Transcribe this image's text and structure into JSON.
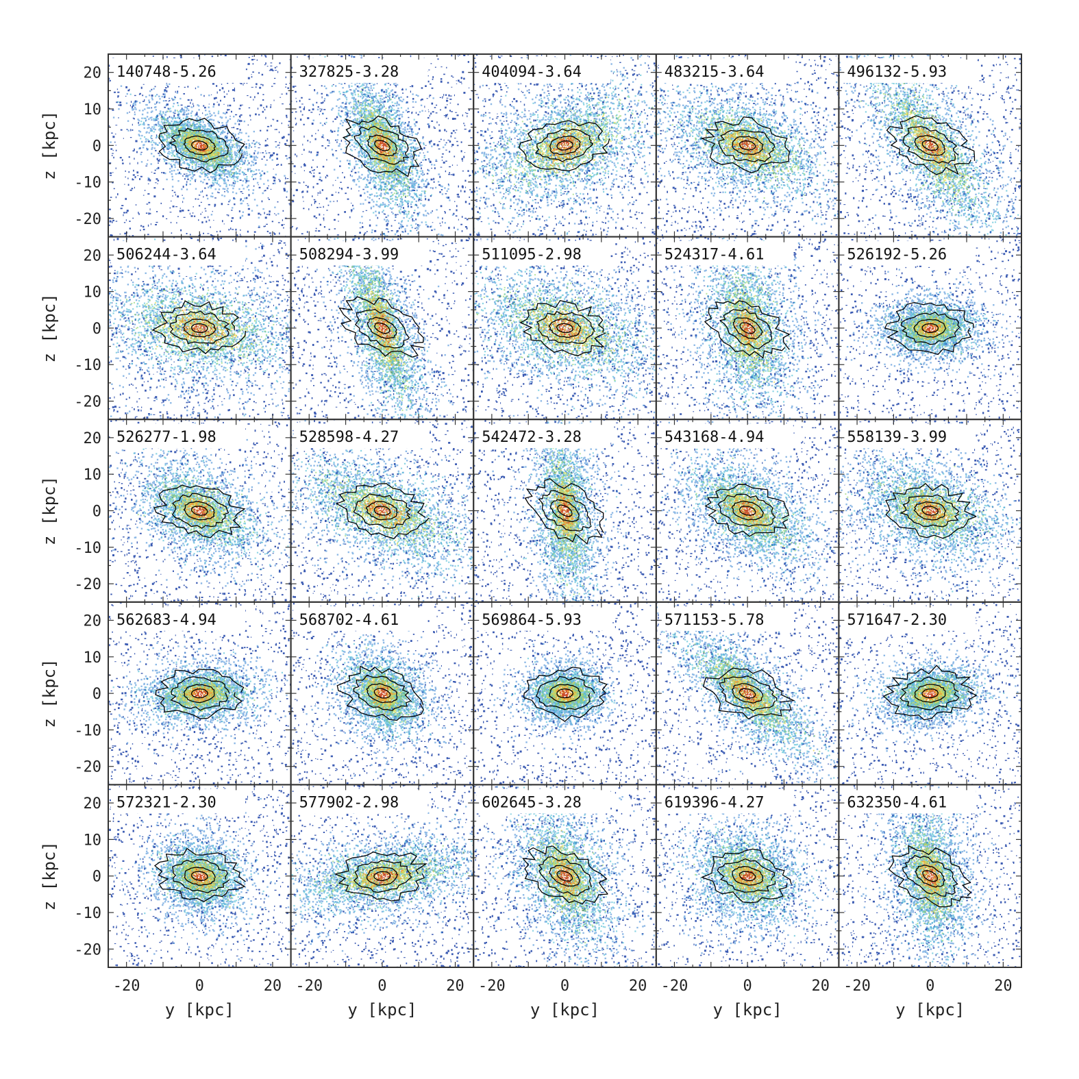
{
  "chart_data": {
    "type": "heatmap",
    "layout": {
      "rows": 5,
      "cols": 5
    },
    "xlabel": "y [kpc]",
    "ylabel": "z [kpc]",
    "xlim": [
      -25,
      25
    ],
    "ylim": [
      -25,
      25
    ],
    "xticks": [
      -20,
      0,
      20
    ],
    "yticks": [
      -20,
      -10,
      0,
      10,
      20
    ],
    "colormap": [
      "#1a3fa6",
      "#2f7fd1",
      "#3fb8d0",
      "#8fd26a",
      "#e8d64a",
      "#ef9a35",
      "#c8402c",
      "#ffffff"
    ],
    "contour_color": "#000000",
    "panels": [
      {
        "label": "140748-5.26",
        "angle_deg": -30,
        "extent_kpc": 12,
        "width_kpc": 3.0
      },
      {
        "label": "327825-3.28",
        "angle_deg": -68,
        "extent_kpc": 16,
        "width_kpc": 3.5
      },
      {
        "label": "404094-3.64",
        "angle_deg": 25,
        "extent_kpc": 20,
        "width_kpc": 6.0
      },
      {
        "label": "483215-3.64",
        "angle_deg": -25,
        "extent_kpc": 18,
        "width_kpc": 5.0
      },
      {
        "label": "496132-5.93",
        "angle_deg": -55,
        "extent_kpc": 24,
        "width_kpc": 4.5
      },
      {
        "label": "506244-3.64",
        "angle_deg": -10,
        "extent_kpc": 22,
        "width_kpc": 6.0
      },
      {
        "label": "508294-3.99",
        "angle_deg": -72,
        "extent_kpc": 22,
        "width_kpc": 3.5
      },
      {
        "label": "511095-2.98",
        "angle_deg": -20,
        "extent_kpc": 22,
        "width_kpc": 6.0
      },
      {
        "label": "524317-4.61",
        "angle_deg": -78,
        "extent_kpc": 18,
        "width_kpc": 5.0
      },
      {
        "label": "526192-5.26",
        "angle_deg": 0,
        "extent_kpc": 10,
        "width_kpc": 3.0
      },
      {
        "label": "526277-1.98",
        "angle_deg": -28,
        "extent_kpc": 14,
        "width_kpc": 4.5
      },
      {
        "label": "528598-4.27",
        "angle_deg": -25,
        "extent_kpc": 22,
        "width_kpc": 5.0
      },
      {
        "label": "542472-3.28",
        "angle_deg": -85,
        "extent_kpc": 20,
        "width_kpc": 3.5
      },
      {
        "label": "543168-4.94",
        "angle_deg": -35,
        "extent_kpc": 16,
        "width_kpc": 4.5
      },
      {
        "label": "558139-3.99",
        "angle_deg": -20,
        "extent_kpc": 16,
        "width_kpc": 5.0
      },
      {
        "label": "562683-4.94",
        "angle_deg": 5,
        "extent_kpc": 12,
        "width_kpc": 3.0
      },
      {
        "label": "568702-4.61",
        "angle_deg": -45,
        "extent_kpc": 10,
        "width_kpc": 4.0
      },
      {
        "label": "569864-5.93",
        "angle_deg": 0,
        "extent_kpc": 8,
        "width_kpc": 3.0
      },
      {
        "label": "571153-5.78",
        "angle_deg": -42,
        "extent_kpc": 20,
        "width_kpc": 3.5
      },
      {
        "label": "571647-2.30",
        "angle_deg": 10,
        "extent_kpc": 10,
        "width_kpc": 3.0
      },
      {
        "label": "572321-2.30",
        "angle_deg": -20,
        "extent_kpc": 10,
        "width_kpc": 4.0
      },
      {
        "label": "577902-2.98",
        "angle_deg": 10,
        "extent_kpc": 20,
        "width_kpc": 4.0
      },
      {
        "label": "602645-3.28",
        "angle_deg": -65,
        "extent_kpc": 16,
        "width_kpc": 5.0
      },
      {
        "label": "619396-4.27",
        "angle_deg": -30,
        "extent_kpc": 12,
        "width_kpc": 5.0
      },
      {
        "label": "632350-4.61",
        "angle_deg": -80,
        "extent_kpc": 16,
        "width_kpc": 4.0
      }
    ]
  }
}
